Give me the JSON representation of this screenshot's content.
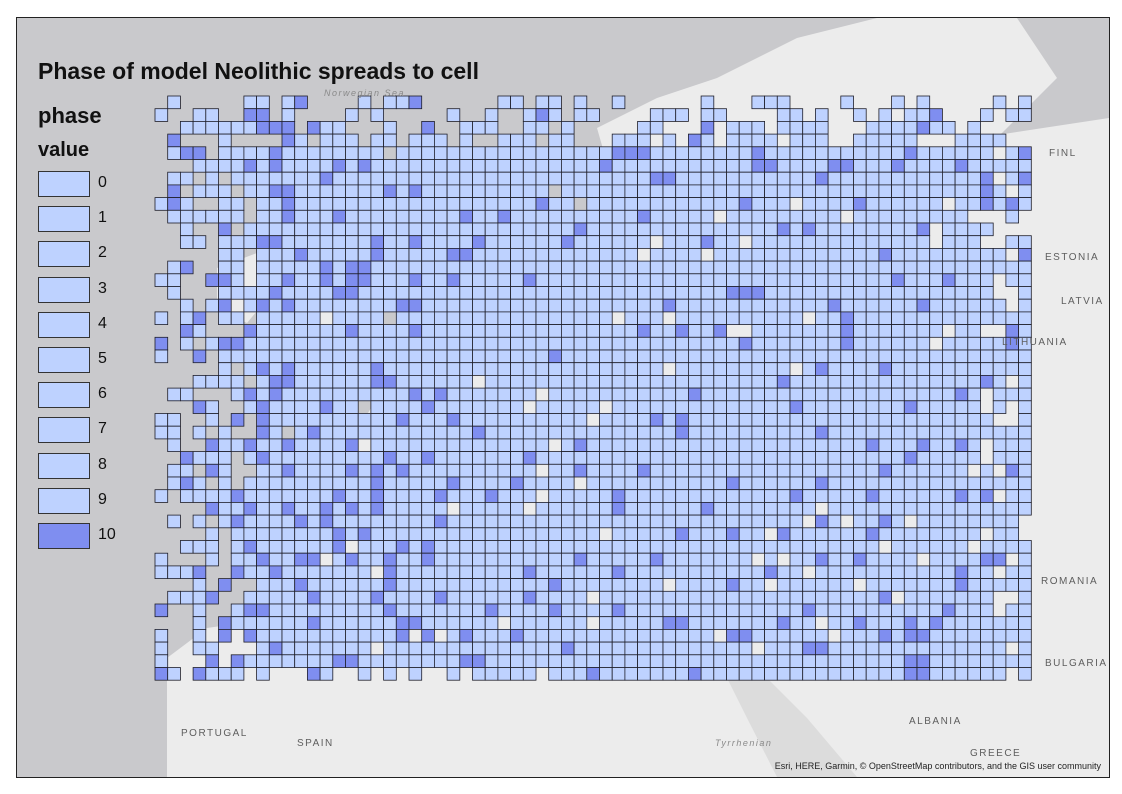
{
  "title": "Phase of model Neolithic spreads to cell",
  "legend": {
    "heading1": "phase",
    "heading2": "value",
    "items": [
      {
        "label": "0",
        "color": "#bed2ff"
      },
      {
        "label": "1",
        "color": "#bed2ff"
      },
      {
        "label": "2",
        "color": "#bed2ff"
      },
      {
        "label": "3",
        "color": "#bed2ff"
      },
      {
        "label": "4",
        "color": "#bed2ff"
      },
      {
        "label": "5",
        "color": "#bed2ff"
      },
      {
        "label": "6",
        "color": "#bed2ff"
      },
      {
        "label": "7",
        "color": "#bed2ff"
      },
      {
        "label": "8",
        "color": "#bed2ff"
      },
      {
        "label": "9",
        "color": "#bed2ff"
      },
      {
        "label": "10",
        "color": "#7f8ef0"
      }
    ]
  },
  "places": {
    "norwegian_sea": "Norwegian Sea",
    "finland": "FINL",
    "estonia": "ESTONIA",
    "latvia": "LATVIA",
    "lithuania": "LITHUANIA",
    "romania": "ROMANIA",
    "bulgaria": "BULGARIA",
    "albania": "ALBANIA",
    "greece": "GREECE",
    "portugal": "PORTUGAL",
    "spain": "SPAIN",
    "tyrrhenian": "Tyrrhenian"
  },
  "attribution": "Esri, HERE, Garmin, © OpenStreetMap contributors, and the GIS user community",
  "colors": {
    "sea": "#c9c9cc",
    "land": "#ececec",
    "cell_light": "#bed2ff",
    "cell_dark": "#7f8ef0",
    "cell_border": "#1e1e2a"
  }
}
